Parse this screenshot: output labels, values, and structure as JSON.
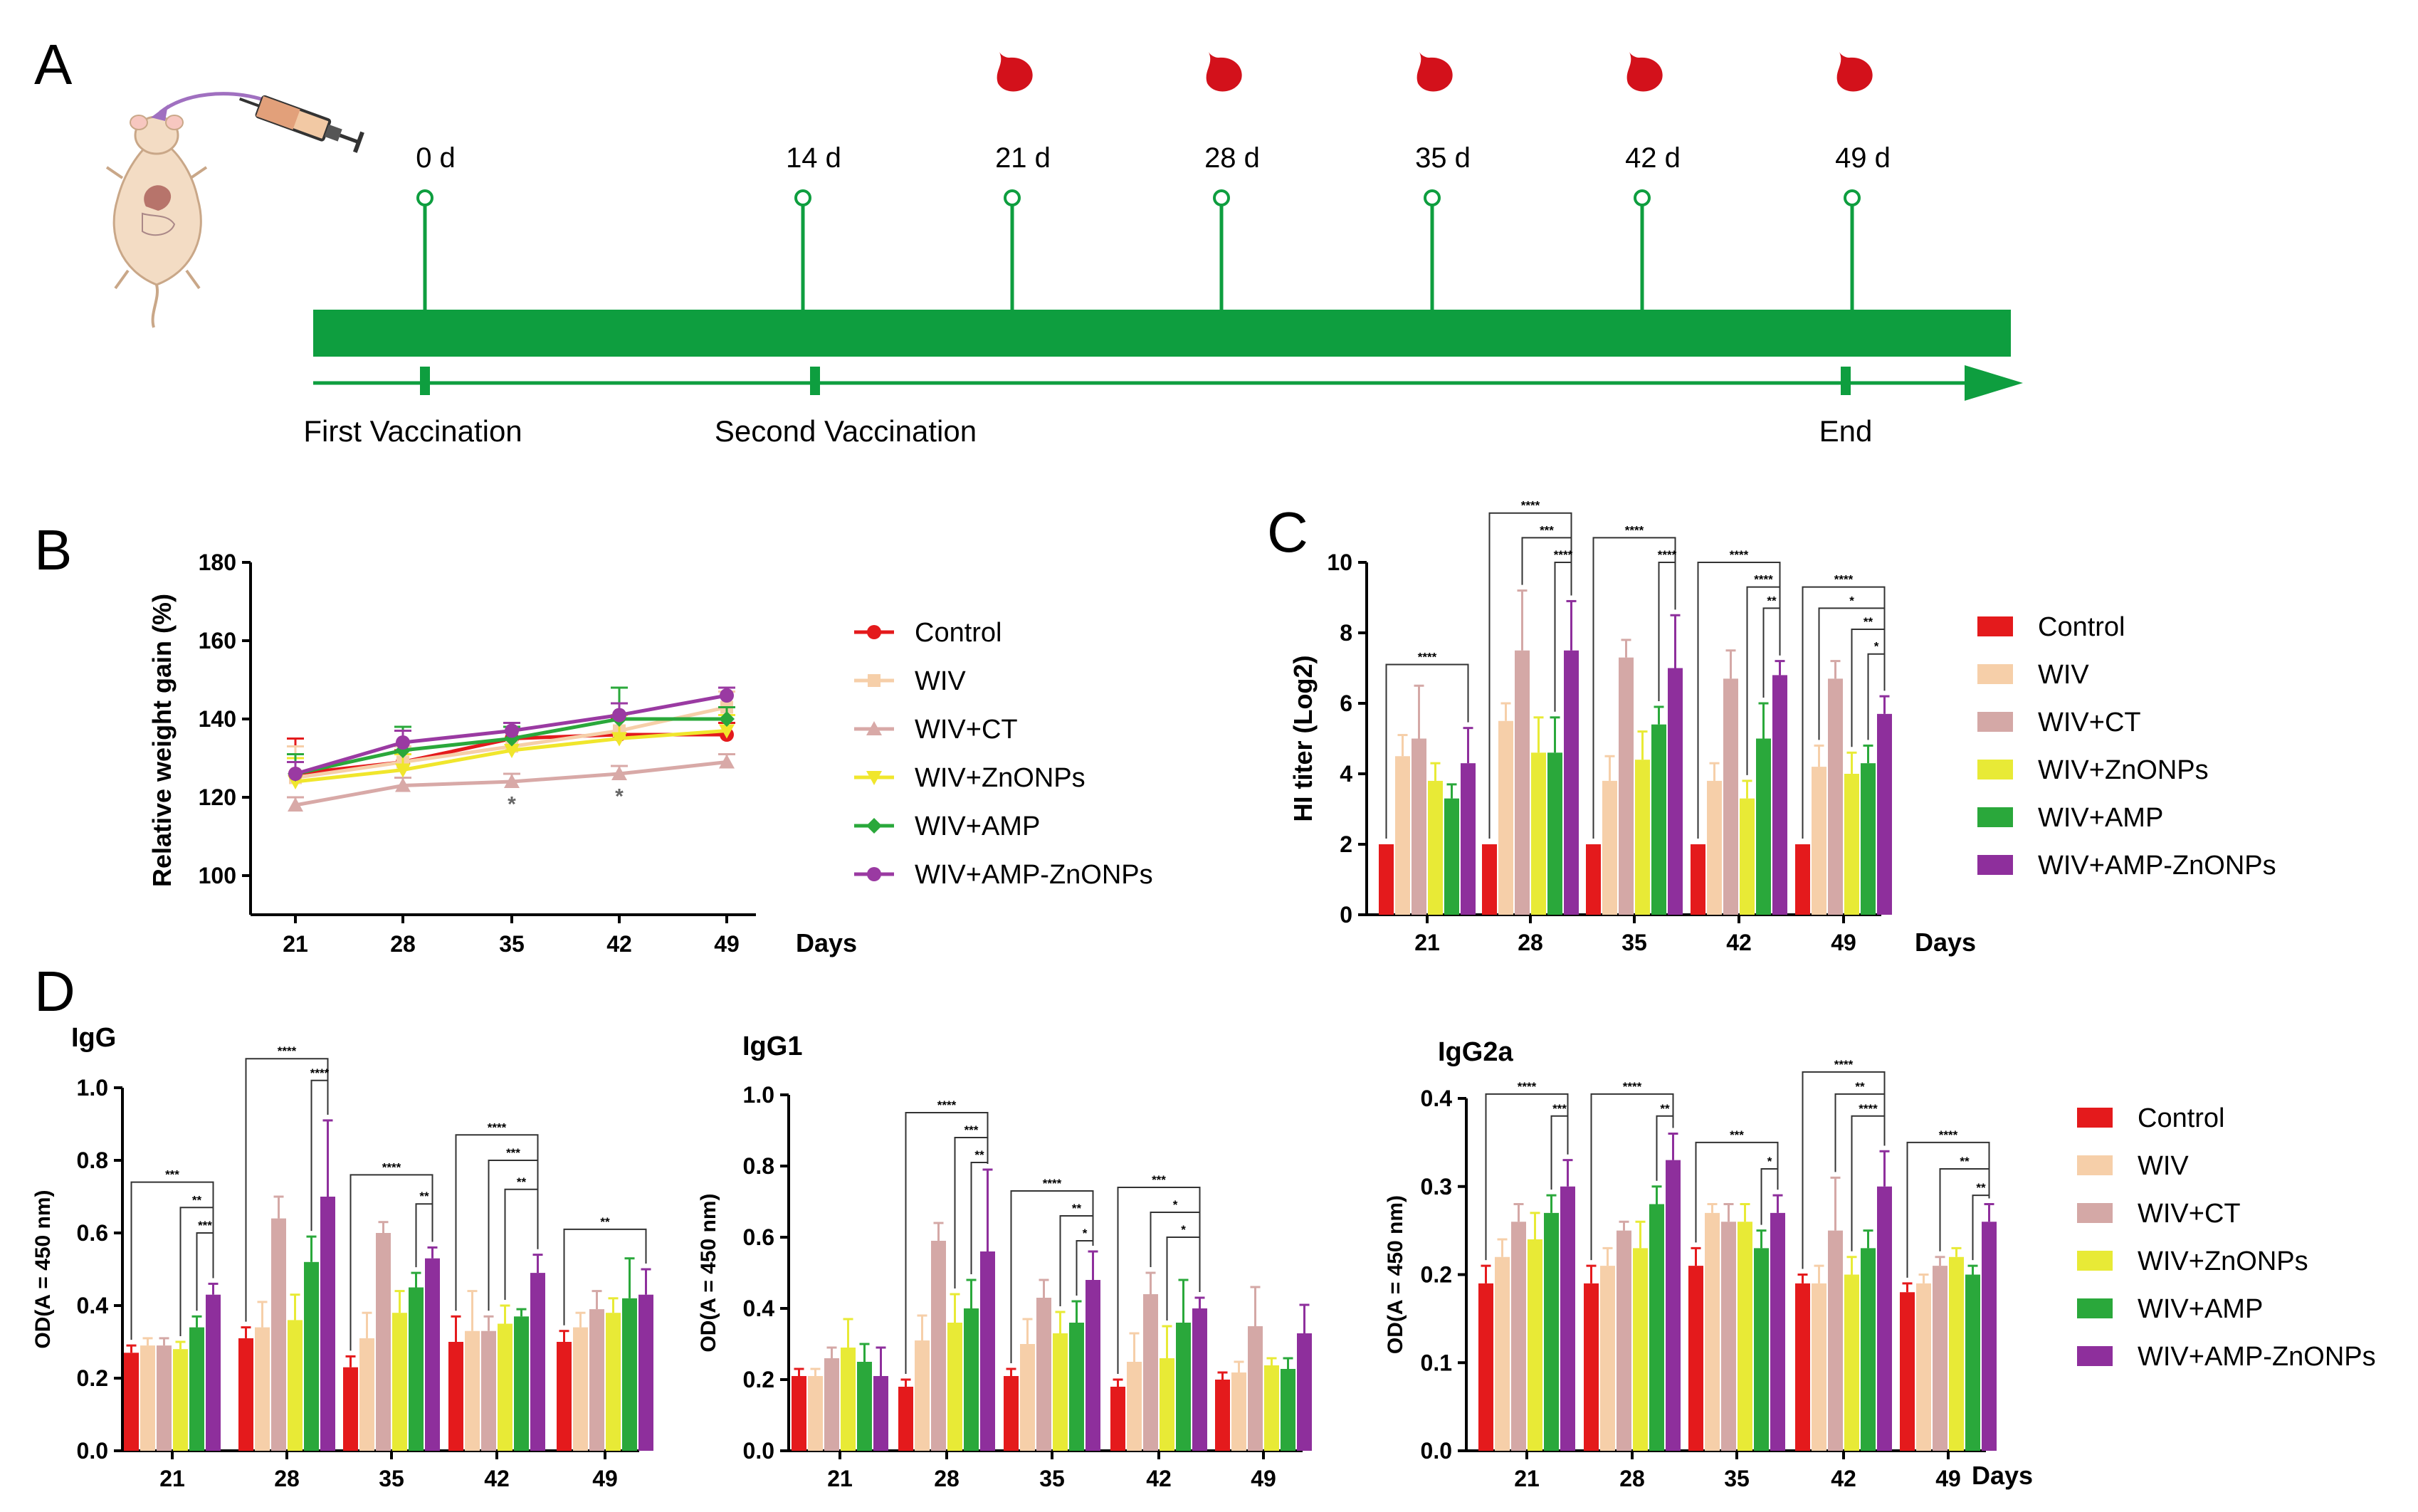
{
  "panel_labels": [
    "A",
    "B",
    "C",
    "D"
  ],
  "timeline": {
    "days": [
      "0 d",
      "14 d",
      "21 d",
      "28 d",
      "35 d",
      "42 d",
      "49 d"
    ],
    "blood_days": [
      "21 d",
      "28 d",
      "35 d",
      "42 d",
      "49 d"
    ],
    "events": [
      "First Vaccination",
      "Second Vaccination",
      "End"
    ],
    "colors": {
      "bar": "#0e9e3f",
      "blood": "#d3111b",
      "needle": "#a070c0"
    }
  },
  "groups": [
    "Control",
    "WIV",
    "WIV+CT",
    "WIV+ZnONPs",
    "WIV+AMP",
    "WIV+AMP-ZnONPs"
  ],
  "colors": [
    "#e41a1c",
    "#f6cfa9",
    "#d4a8a6",
    "#e8ea36",
    "#2aa83b",
    "#8e2f9c"
  ],
  "line_colors": [
    "#e41a1c",
    "#f6cfa9",
    "#d8a9a7",
    "#f0e62c",
    "#2aa83b",
    "#9a3aa2"
  ],
  "days_label": "Days",
  "chart_data": [
    {
      "id": "B",
      "type": "line",
      "ylabel": "Relative weight gain (%)",
      "xlabel": "Days",
      "x": [
        21,
        28,
        35,
        42,
        49
      ],
      "ylim": [
        90,
        180
      ],
      "yticks": [
        100,
        120,
        140,
        160,
        180
      ],
      "series": [
        {
          "name": "Control",
          "values": [
            126,
            129,
            135,
            136,
            136
          ],
          "errors": [
            9,
            3,
            3,
            4,
            3
          ]
        },
        {
          "name": "WIV",
          "values": [
            125,
            129,
            133,
            137,
            143
          ],
          "errors": [
            8,
            4,
            5,
            4,
            4
          ]
        },
        {
          "name": "WIV+CT",
          "values": [
            118,
            123,
            124,
            126,
            129
          ],
          "errors": [
            2,
            2,
            2,
            2,
            2
          ]
        },
        {
          "name": "WIV+ZnONPs",
          "values": [
            124,
            127,
            132,
            135,
            137
          ],
          "errors": [
            6,
            4,
            6,
            6,
            4
          ]
        },
        {
          "name": "WIV+AMP",
          "values": [
            126,
            132,
            135,
            140,
            140
          ],
          "errors": [
            5,
            6,
            3,
            8,
            3
          ]
        },
        {
          "name": "WIV+AMP-ZnONPs",
          "values": [
            126,
            134,
            137,
            141,
            146
          ],
          "errors": [
            3,
            3,
            2,
            3,
            2
          ]
        }
      ],
      "annotations": [
        {
          "x": 35,
          "y": 119,
          "text": "*"
        },
        {
          "x": 42,
          "y": 121,
          "text": "*"
        }
      ]
    },
    {
      "id": "C",
      "type": "bar",
      "ylabel": "HI titer (Log2)",
      "xlabel": "Days",
      "categories": [
        "21",
        "28",
        "35",
        "42",
        "49"
      ],
      "ylim": [
        0,
        10
      ],
      "yticks": [
        0,
        2,
        4,
        6,
        8,
        10
      ],
      "series": [
        {
          "name": "Control",
          "values": [
            2,
            2,
            2,
            2,
            2
          ],
          "errors": [
            0,
            0,
            0,
            0,
            0
          ]
        },
        {
          "name": "WIV",
          "values": [
            4.5,
            5.5,
            3.8,
            3.8,
            4.2
          ],
          "errors": [
            0.6,
            0.5,
            0.7,
            0.5,
            0.6
          ]
        },
        {
          "name": "WIV+CT",
          "values": [
            5.0,
            7.5,
            7.3,
            6.7,
            6.7
          ],
          "errors": [
            1.5,
            1.7,
            0.5,
            0.8,
            0.5
          ]
        },
        {
          "name": "WIV+ZnONPs",
          "values": [
            3.8,
            4.6,
            4.4,
            3.3,
            4.0
          ],
          "errors": [
            0.5,
            1.0,
            0.8,
            0.5,
            0.6
          ]
        },
        {
          "name": "WIV+AMP",
          "values": [
            3.3,
            4.6,
            5.4,
            5.0,
            4.3
          ],
          "errors": [
            0.4,
            1.0,
            0.5,
            1.0,
            0.5
          ]
        },
        {
          "name": "WIV+AMP-ZnONPs",
          "values": [
            4.3,
            7.5,
            7.0,
            6.8,
            5.7
          ],
          "errors": [
            1.0,
            1.4,
            1.5,
            0.4,
            0.5
          ]
        }
      ],
      "brackets": [
        {
          "cat": 0,
          "from": 0,
          "to": 5,
          "y": 7.1,
          "text": "****"
        },
        {
          "cat": 1,
          "from": 0,
          "to": 5,
          "y": 11.4,
          "text": "****"
        },
        {
          "cat": 1,
          "from": 2,
          "to": 5,
          "y": 10.7,
          "text": "***"
        },
        {
          "cat": 1,
          "from": 4,
          "to": 5,
          "y": 10.0,
          "text": "****"
        },
        {
          "cat": 2,
          "from": 0,
          "to": 5,
          "y": 10.7,
          "text": "****"
        },
        {
          "cat": 2,
          "from": 4,
          "to": 5,
          "y": 10.0,
          "text": "****"
        },
        {
          "cat": 3,
          "from": 0,
          "to": 5,
          "y": 10.0,
          "text": "****"
        },
        {
          "cat": 3,
          "from": 3,
          "to": 5,
          "y": 9.3,
          "text": "****"
        },
        {
          "cat": 3,
          "from": 4,
          "to": 5,
          "y": 8.7,
          "text": "**"
        },
        {
          "cat": 4,
          "from": 0,
          "to": 5,
          "y": 9.3,
          "text": "****"
        },
        {
          "cat": 4,
          "from": 1,
          "to": 5,
          "y": 8.7,
          "text": "*"
        },
        {
          "cat": 4,
          "from": 3,
          "to": 5,
          "y": 8.1,
          "text": "**"
        },
        {
          "cat": 4,
          "from": 4,
          "to": 5,
          "y": 7.4,
          "text": "*"
        }
      ]
    },
    {
      "id": "D-IgG",
      "type": "bar",
      "title": "IgG",
      "ylabel": "OD(A = 450 nm)",
      "xlabel": "",
      "categories": [
        "21",
        "28",
        "35",
        "42",
        "49"
      ],
      "ylim": [
        0,
        1.0
      ],
      "yticks": [
        "0.0",
        "0.2",
        "0.4",
        "0.6",
        "0.8",
        "1.0"
      ],
      "series": [
        {
          "name": "Control",
          "values": [
            0.27,
            0.31,
            0.23,
            0.3,
            0.3
          ],
          "errors": [
            0.02,
            0.03,
            0.03,
            0.07,
            0.03
          ]
        },
        {
          "name": "WIV",
          "values": [
            0.29,
            0.34,
            0.31,
            0.33,
            0.34
          ],
          "errors": [
            0.02,
            0.07,
            0.07,
            0.11,
            0.04
          ]
        },
        {
          "name": "WIV+CT",
          "values": [
            0.29,
            0.64,
            0.6,
            0.33,
            0.39
          ],
          "errors": [
            0.02,
            0.06,
            0.03,
            0.04,
            0.05
          ]
        },
        {
          "name": "WIV+ZnONPs",
          "values": [
            0.28,
            0.36,
            0.38,
            0.35,
            0.38
          ],
          "errors": [
            0.02,
            0.07,
            0.06,
            0.05,
            0.04
          ]
        },
        {
          "name": "WIV+AMP",
          "values": [
            0.34,
            0.52,
            0.45,
            0.37,
            0.42
          ],
          "errors": [
            0.03,
            0.07,
            0.04,
            0.02,
            0.11
          ]
        },
        {
          "name": "WIV+AMP-ZnONPs",
          "values": [
            0.43,
            0.7,
            0.53,
            0.49,
            0.43
          ],
          "errors": [
            0.03,
            0.21,
            0.03,
            0.05,
            0.07
          ]
        }
      ],
      "brackets": [
        {
          "cat": 0,
          "from": 0,
          "to": 5,
          "y": 0.74,
          "text": "***"
        },
        {
          "cat": 0,
          "from": 3,
          "to": 5,
          "y": 0.67,
          "text": "**"
        },
        {
          "cat": 0,
          "from": 4,
          "to": 5,
          "y": 0.6,
          "text": "***"
        },
        {
          "cat": 1,
          "from": 0,
          "to": 5,
          "y": 1.08,
          "text": "****"
        },
        {
          "cat": 1,
          "from": 4,
          "to": 5,
          "y": 1.02,
          "text": "****"
        },
        {
          "cat": 2,
          "from": 0,
          "to": 5,
          "y": 0.76,
          "text": "****"
        },
        {
          "cat": 2,
          "from": 4,
          "to": 5,
          "y": 0.68,
          "text": "**"
        },
        {
          "cat": 3,
          "from": 0,
          "to": 5,
          "y": 0.87,
          "text": "****"
        },
        {
          "cat": 3,
          "from": 2,
          "to": 5,
          "y": 0.8,
          "text": "***"
        },
        {
          "cat": 3,
          "from": 3,
          "to": 5,
          "y": 0.72,
          "text": "**"
        },
        {
          "cat": 4,
          "from": 0,
          "to": 5,
          "y": 0.61,
          "text": "**"
        }
      ]
    },
    {
      "id": "D-IgG1",
      "type": "bar",
      "title": "IgG1",
      "ylabel": "OD(A = 450 nm)",
      "xlabel": "",
      "categories": [
        "21",
        "28",
        "35",
        "42",
        "49"
      ],
      "ylim": [
        0,
        1.0
      ],
      "yticks": [
        "0.0",
        "0.2",
        "0.4",
        "0.6",
        "0.8",
        "1.0"
      ],
      "series": [
        {
          "name": "Control",
          "values": [
            0.21,
            0.18,
            0.21,
            0.18,
            0.2
          ],
          "errors": [
            0.02,
            0.02,
            0.02,
            0.02,
            0.02
          ]
        },
        {
          "name": "WIV",
          "values": [
            0.21,
            0.31,
            0.3,
            0.25,
            0.22
          ],
          "errors": [
            0.02,
            0.07,
            0.07,
            0.08,
            0.03
          ]
        },
        {
          "name": "WIV+CT",
          "values": [
            0.26,
            0.59,
            0.43,
            0.44,
            0.35
          ],
          "errors": [
            0.03,
            0.05,
            0.05,
            0.06,
            0.11
          ]
        },
        {
          "name": "WIV+ZnONPs",
          "values": [
            0.29,
            0.36,
            0.33,
            0.26,
            0.24
          ],
          "errors": [
            0.08,
            0.08,
            0.06,
            0.09,
            0.02
          ]
        },
        {
          "name": "WIV+AMP",
          "values": [
            0.25,
            0.4,
            0.36,
            0.36,
            0.23
          ],
          "errors": [
            0.05,
            0.08,
            0.06,
            0.12,
            0.03
          ]
        },
        {
          "name": "WIV+AMP-ZnONPs",
          "values": [
            0.21,
            0.56,
            0.48,
            0.4,
            0.33
          ],
          "errors": [
            0.08,
            0.23,
            0.08,
            0.03,
            0.08
          ]
        }
      ],
      "brackets": [
        {
          "cat": 1,
          "from": 0,
          "to": 5,
          "y": 0.95,
          "text": "****"
        },
        {
          "cat": 1,
          "from": 3,
          "to": 5,
          "y": 0.88,
          "text": "***"
        },
        {
          "cat": 1,
          "from": 4,
          "to": 5,
          "y": 0.81,
          "text": "**"
        },
        {
          "cat": 2,
          "from": 0,
          "to": 5,
          "y": 0.73,
          "text": "****"
        },
        {
          "cat": 2,
          "from": 3,
          "to": 5,
          "y": 0.66,
          "text": "**"
        },
        {
          "cat": 2,
          "from": 4,
          "to": 5,
          "y": 0.59,
          "text": "*"
        },
        {
          "cat": 3,
          "from": 0,
          "to": 5,
          "y": 0.74,
          "text": "***"
        },
        {
          "cat": 3,
          "from": 2,
          "to": 5,
          "y": 0.67,
          "text": "*"
        },
        {
          "cat": 3,
          "from": 3,
          "to": 5,
          "y": 0.6,
          "text": "*"
        }
      ]
    },
    {
      "id": "D-IgG2a",
      "type": "bar",
      "title": "IgG2a",
      "ylabel": "OD(A = 450 nm)",
      "xlabel": "Days",
      "categories": [
        "21",
        "28",
        "35",
        "42",
        "49"
      ],
      "ylim": [
        0,
        0.4
      ],
      "yticks": [
        "0.0",
        "0.1",
        "0.2",
        "0.3",
        "0.4"
      ],
      "series": [
        {
          "name": "Control",
          "values": [
            0.19,
            0.19,
            0.21,
            0.19,
            0.18
          ],
          "errors": [
            0.02,
            0.02,
            0.02,
            0.01,
            0.01
          ]
        },
        {
          "name": "WIV",
          "values": [
            0.22,
            0.21,
            0.27,
            0.19,
            0.19
          ],
          "errors": [
            0.02,
            0.02,
            0.01,
            0.02,
            0.01
          ]
        },
        {
          "name": "WIV+CT",
          "values": [
            0.26,
            0.25,
            0.26,
            0.25,
            0.21
          ],
          "errors": [
            0.02,
            0.01,
            0.02,
            0.06,
            0.01
          ]
        },
        {
          "name": "WIV+ZnONPs",
          "values": [
            0.24,
            0.23,
            0.26,
            0.2,
            0.22
          ],
          "errors": [
            0.03,
            0.03,
            0.02,
            0.02,
            0.01
          ]
        },
        {
          "name": "WIV+AMP",
          "values": [
            0.27,
            0.28,
            0.23,
            0.23,
            0.2
          ],
          "errors": [
            0.02,
            0.02,
            0.02,
            0.02,
            0.01
          ]
        },
        {
          "name": "WIV+AMP-ZnONPs",
          "values": [
            0.3,
            0.33,
            0.27,
            0.3,
            0.26
          ],
          "errors": [
            0.03,
            0.03,
            0.02,
            0.04,
            0.02
          ]
        }
      ],
      "brackets": [
        {
          "cat": 0,
          "from": 0,
          "to": 5,
          "y": 0.405,
          "text": "****"
        },
        {
          "cat": 0,
          "from": 4,
          "to": 5,
          "y": 0.38,
          "text": "***"
        },
        {
          "cat": 1,
          "from": 0,
          "to": 5,
          "y": 0.405,
          "text": "****"
        },
        {
          "cat": 1,
          "from": 4,
          "to": 5,
          "y": 0.38,
          "text": "**"
        },
        {
          "cat": 2,
          "from": 0,
          "to": 5,
          "y": 0.35,
          "text": "***"
        },
        {
          "cat": 2,
          "from": 4,
          "to": 5,
          "y": 0.32,
          "text": "*"
        },
        {
          "cat": 3,
          "from": 0,
          "to": 5,
          "y": 0.43,
          "text": "****"
        },
        {
          "cat": 3,
          "from": 2,
          "to": 5,
          "y": 0.405,
          "text": "**"
        },
        {
          "cat": 3,
          "from": 3,
          "to": 5,
          "y": 0.38,
          "text": "****"
        },
        {
          "cat": 4,
          "from": 0,
          "to": 5,
          "y": 0.35,
          "text": "****"
        },
        {
          "cat": 4,
          "from": 2,
          "to": 5,
          "y": 0.32,
          "text": "**"
        },
        {
          "cat": 4,
          "from": 4,
          "to": 5,
          "y": 0.29,
          "text": "**"
        }
      ]
    }
  ]
}
